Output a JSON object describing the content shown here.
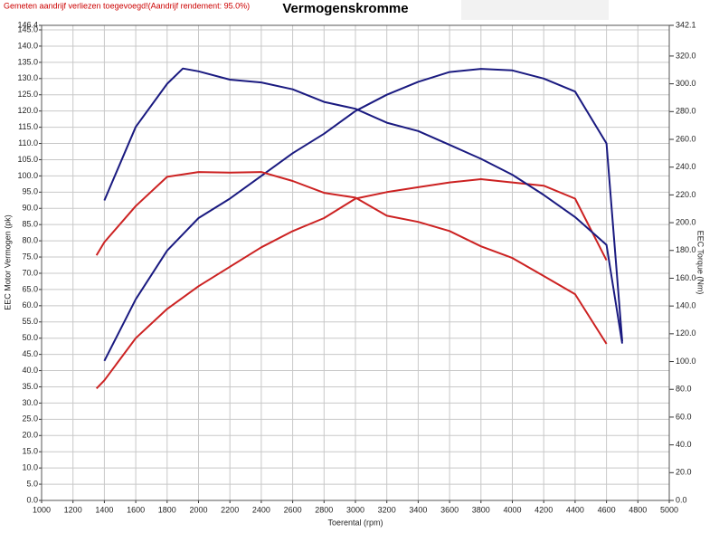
{
  "chart_data": {
    "type": "line",
    "title": "Vermogenskromme",
    "subtitle": "Gemeten aandrijf verliezen toegevoegd!(Aandrijf rendement: 95.0%)",
    "x_label": "Toerental (rpm)",
    "y_label": "EEC Motor Vermogen (pk)",
    "y2_label": "EEC Torque (Nm)",
    "xlim": [
      1000,
      5000
    ],
    "xticks": [
      1000,
      1200,
      1400,
      1600,
      1800,
      2000,
      2200,
      2400,
      2600,
      2800,
      3000,
      3200,
      3400,
      3600,
      3800,
      4000,
      4200,
      4400,
      4600,
      4800,
      5000
    ],
    "ylim": [
      0,
      146.4
    ],
    "yticks": [
      {
        "value": 0,
        "label": "0.0"
      },
      {
        "value": 5,
        "label": "5.0"
      },
      {
        "value": 10,
        "label": "10.0"
      },
      {
        "value": 15,
        "label": "15.0"
      },
      {
        "value": 20,
        "label": "20.0"
      },
      {
        "value": 25,
        "label": "25.0"
      },
      {
        "value": 30,
        "label": "30.0"
      },
      {
        "value": 35,
        "label": "35.0"
      },
      {
        "value": 40,
        "label": "40.0"
      },
      {
        "value": 45,
        "label": "45.0"
      },
      {
        "value": 50,
        "label": "50.0"
      },
      {
        "value": 55,
        "label": "55.0"
      },
      {
        "value": 60,
        "label": "60.0"
      },
      {
        "value": 65,
        "label": "65.0"
      },
      {
        "value": 70,
        "label": "70.0"
      },
      {
        "value": 75,
        "label": "75.0"
      },
      {
        "value": 80,
        "label": "80.0"
      },
      {
        "value": 85,
        "label": "85.0"
      },
      {
        "value": 90,
        "label": "90.0"
      },
      {
        "value": 95,
        "label": "95.0"
      },
      {
        "value": 100,
        "label": "100.0"
      },
      {
        "value": 105,
        "label": "105.0"
      },
      {
        "value": 110,
        "label": "110.0"
      },
      {
        "value": 115,
        "label": "115.0"
      },
      {
        "value": 120,
        "label": "120.0"
      },
      {
        "value": 125,
        "label": "125.0"
      },
      {
        "value": 130,
        "label": "130.0"
      },
      {
        "value": 135,
        "label": "135.0"
      },
      {
        "value": 140,
        "label": "140.0"
      },
      {
        "value": 145,
        "label": "145.0"
      },
      {
        "value": 146.4,
        "label": "146.4"
      }
    ],
    "y2lim": [
      0,
      342.1
    ],
    "y2ticks": [
      {
        "value": 0,
        "label": "0.0"
      },
      {
        "value": 20,
        "label": "20.0"
      },
      {
        "value": 40,
        "label": "40.0"
      },
      {
        "value": 60,
        "label": "60.0"
      },
      {
        "value": 80,
        "label": "80.0"
      },
      {
        "value": 100,
        "label": "100.0"
      },
      {
        "value": 120,
        "label": "120.0"
      },
      {
        "value": 140,
        "label": "140.0"
      },
      {
        "value": 160,
        "label": "160.0"
      },
      {
        "value": 180,
        "label": "180.0"
      },
      {
        "value": 200,
        "label": "200.0"
      },
      {
        "value": 220,
        "label": "220.0"
      },
      {
        "value": 240,
        "label": "240.0"
      },
      {
        "value": 260,
        "label": "260.0"
      },
      {
        "value": 280,
        "label": "280.0"
      },
      {
        "value": 300,
        "label": "300.0"
      },
      {
        "value": 320,
        "label": "320.0"
      },
      {
        "value": 342.1,
        "label": "342.1"
      }
    ],
    "grid": true,
    "series": [
      {
        "color": "#1a1a80",
        "axis": "y",
        "x": [
          1400,
          1600,
          1800,
          2000,
          2200,
          2400,
          2600,
          2800,
          3000,
          3200,
          3400,
          3600,
          3800,
          4000,
          4200,
          4400,
          4600,
          4700
        ],
        "values": [
          43,
          62,
          77,
          87,
          93,
          100,
          107,
          113,
          120,
          125,
          129,
          132,
          133,
          132.5,
          130,
          126,
          110,
          49
        ]
      },
      {
        "color": "#cc2222",
        "axis": "y",
        "x": [
          1350,
          1400,
          1600,
          1800,
          2000,
          2200,
          2400,
          2600,
          2800,
          3000,
          3200,
          3400,
          3600,
          3800,
          4000,
          4200,
          4400,
          4600
        ],
        "values": [
          34.5,
          37,
          50,
          59,
          66,
          72,
          78,
          83,
          87,
          93,
          95,
          96.5,
          98,
          99,
          98,
          97,
          93,
          74
        ]
      },
      {
        "color": "#1a1a80",
        "axis": "y2",
        "x": [
          1400,
          1600,
          1800,
          1900,
          2000,
          2200,
          2400,
          2600,
          2800,
          3000,
          3200,
          3400,
          3600,
          3800,
          4000,
          4200,
          4400,
          4600,
          4700
        ],
        "values": [
          216,
          269,
          300,
          311,
          309,
          303,
          301,
          296,
          287,
          282,
          272,
          266,
          256,
          246,
          234.5,
          220,
          204,
          184,
          113
        ]
      },
      {
        "color": "#cc2222",
        "axis": "y2",
        "x": [
          1350,
          1400,
          1600,
          1800,
          2000,
          2200,
          2400,
          2600,
          2800,
          3000,
          3200,
          3400,
          3600,
          3800,
          4000,
          4200,
          4400,
          4600
        ],
        "values": [
          176.5,
          186,
          212,
          233,
          236.5,
          236,
          236.5,
          230,
          221.5,
          218,
          205,
          200.6,
          194,
          183,
          174.6,
          161.6,
          148.5,
          112.7
        ]
      }
    ]
  }
}
